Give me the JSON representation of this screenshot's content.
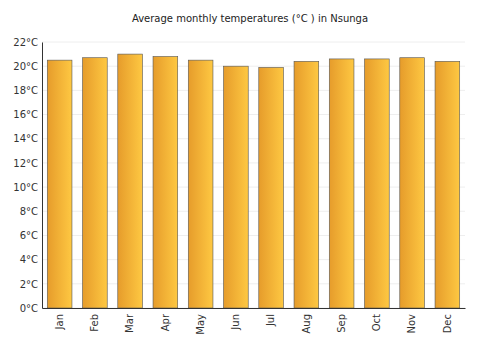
{
  "chart_data": {
    "type": "bar",
    "title": "Average monthly temperatures (°C ) in Nsunga",
    "categories": [
      "Jan",
      "Feb",
      "Mar",
      "Apr",
      "May",
      "Jun",
      "Jul",
      "Aug",
      "Sep",
      "Oct",
      "Nov",
      "Dec"
    ],
    "values": [
      20.5,
      20.7,
      21.0,
      20.8,
      20.5,
      20.0,
      19.9,
      20.4,
      20.6,
      20.6,
      20.7,
      20.4
    ],
    "color": "#fbab2f",
    "ylim": [
      0,
      22
    ],
    "yticks": [
      {
        "value": 0,
        "label": "0°C"
      },
      {
        "value": 2,
        "label": "2°C"
      },
      {
        "value": 4,
        "label": "4°C"
      },
      {
        "value": 6,
        "label": "6°C"
      },
      {
        "value": 8,
        "label": "8°C"
      },
      {
        "value": 10,
        "label": "10°C"
      },
      {
        "value": 12,
        "label": "12°C"
      },
      {
        "value": 14,
        "label": "14°C"
      },
      {
        "value": 16,
        "label": "16°C"
      },
      {
        "value": 18,
        "label": "18°C"
      },
      {
        "value": 20,
        "label": "20°C"
      },
      {
        "value": 22,
        "label": "22°C"
      }
    ],
    "grid": true
  }
}
